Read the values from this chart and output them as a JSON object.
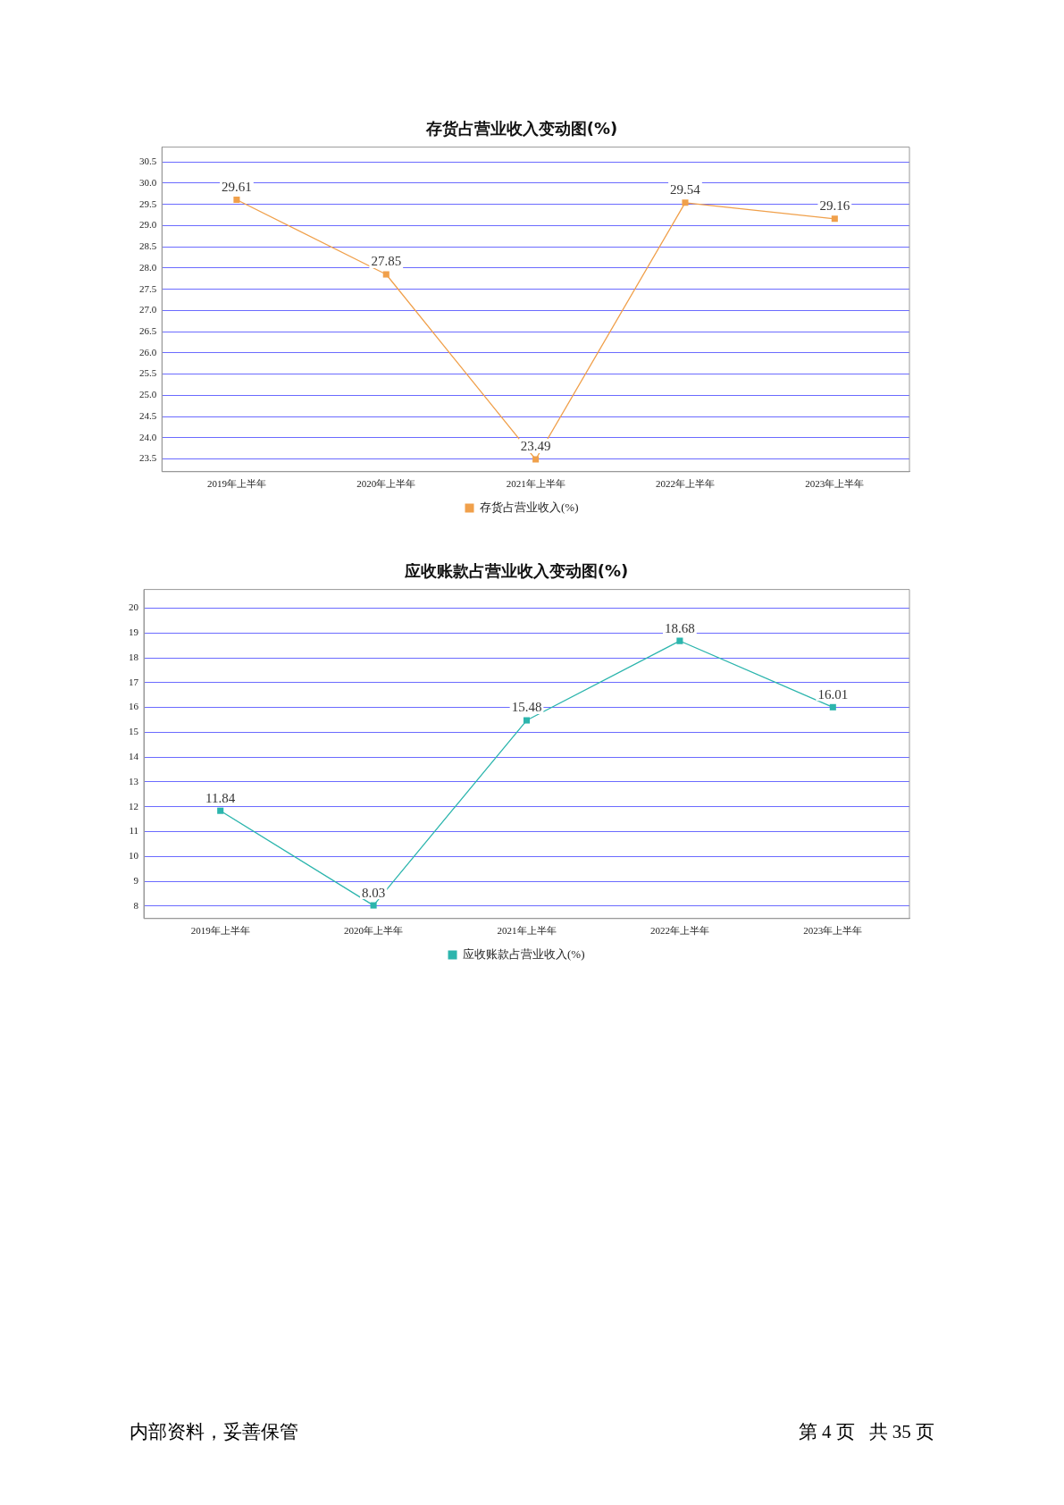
{
  "chart_data": [
    {
      "type": "line",
      "title": "存货占营业收入变动图(%)",
      "categories": [
        "2019年上半年",
        "2020年上半年",
        "2021年上半年",
        "2022年上半年",
        "2023年上半年"
      ],
      "series": [
        {
          "name": "存货占营业收入(%)",
          "color": "#f0a04b",
          "values": [
            29.61,
            27.85,
            23.49,
            29.54,
            29.16
          ]
        }
      ],
      "ylim": [
        23.2,
        30.85
      ],
      "yticks": [
        {
          "value": 23.5,
          "label": "23.5"
        },
        {
          "value": 24,
          "label": "24.0"
        },
        {
          "value": 24.5,
          "label": "24.5"
        },
        {
          "value": 25,
          "label": "25.0"
        },
        {
          "value": 25.5,
          "label": "25.5"
        },
        {
          "value": 26,
          "label": "26.0"
        },
        {
          "value": 26.5,
          "label": "26.5"
        },
        {
          "value": 27,
          "label": "27.0"
        },
        {
          "value": 27.5,
          "label": "27.5"
        },
        {
          "value": 28,
          "label": "28.0"
        },
        {
          "value": 28.5,
          "label": "28.5"
        },
        {
          "value": 29,
          "label": "29.0"
        },
        {
          "value": 29.5,
          "label": "29.5"
        },
        {
          "value": 30,
          "label": "30.0"
        },
        {
          "value": 30.5,
          "label": "30.5"
        }
      ],
      "grid": "y",
      "legend": "bottom",
      "marker": "square",
      "data_labels": true
    },
    {
      "type": "line",
      "title": "应收账款占营业收入变动图(%)",
      "categories": [
        "2019年上半年",
        "2020年上半年",
        "2021年上半年",
        "2022年上半年",
        "2023年上半年"
      ],
      "series": [
        {
          "name": "应收账款占营业收入(%)",
          "color": "#2cb5ad",
          "values": [
            11.84,
            8.03,
            15.48,
            18.68,
            16.01
          ]
        }
      ],
      "ylim": [
        7.5,
        20.75
      ],
      "yticks": [
        8,
        9,
        10,
        11,
        12,
        13,
        14,
        15,
        16,
        17,
        18,
        19,
        20
      ],
      "grid": "y",
      "legend": "bottom",
      "marker": "square",
      "data_labels": true,
      "annotations": [
        "内部资料，妥善保管",
        "第 4 页   共 35 页"
      ]
    }
  ]
}
